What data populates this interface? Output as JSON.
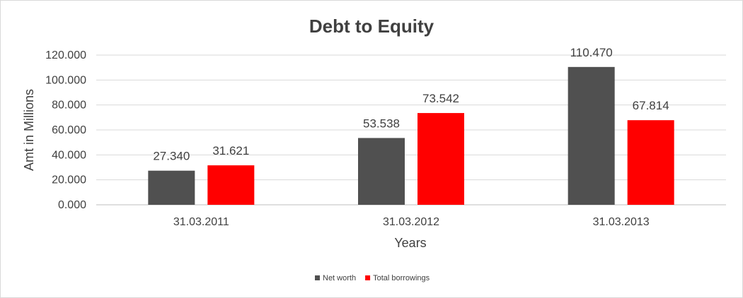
{
  "chart_data": {
    "type": "bar",
    "title": "Debt to Equity",
    "xlabel": "Years",
    "ylabel": "Amt in Millions",
    "categories": [
      "31.03.2011",
      "31.03.2012",
      "31.03.2013"
    ],
    "series": [
      {
        "name": "Net worth",
        "color": "#505050",
        "values": [
          27.34,
          53.538,
          110.47
        ],
        "labels": [
          "27.340",
          "53.538",
          "110.470"
        ]
      },
      {
        "name": "Total borrowings",
        "color": "#ff0000",
        "values": [
          31.621,
          73.542,
          67.814
        ],
        "labels": [
          "31.621",
          "73.542",
          "67.814"
        ]
      }
    ],
    "ylim": [
      0,
      120
    ],
    "yticks": [
      0,
      20,
      40,
      60,
      80,
      100,
      120
    ],
    "ytick_labels": [
      "0.000",
      "20.000",
      "40.000",
      "60.000",
      "80.000",
      "100.000",
      "120.000"
    ],
    "grid": true,
    "legend": "bottom"
  }
}
